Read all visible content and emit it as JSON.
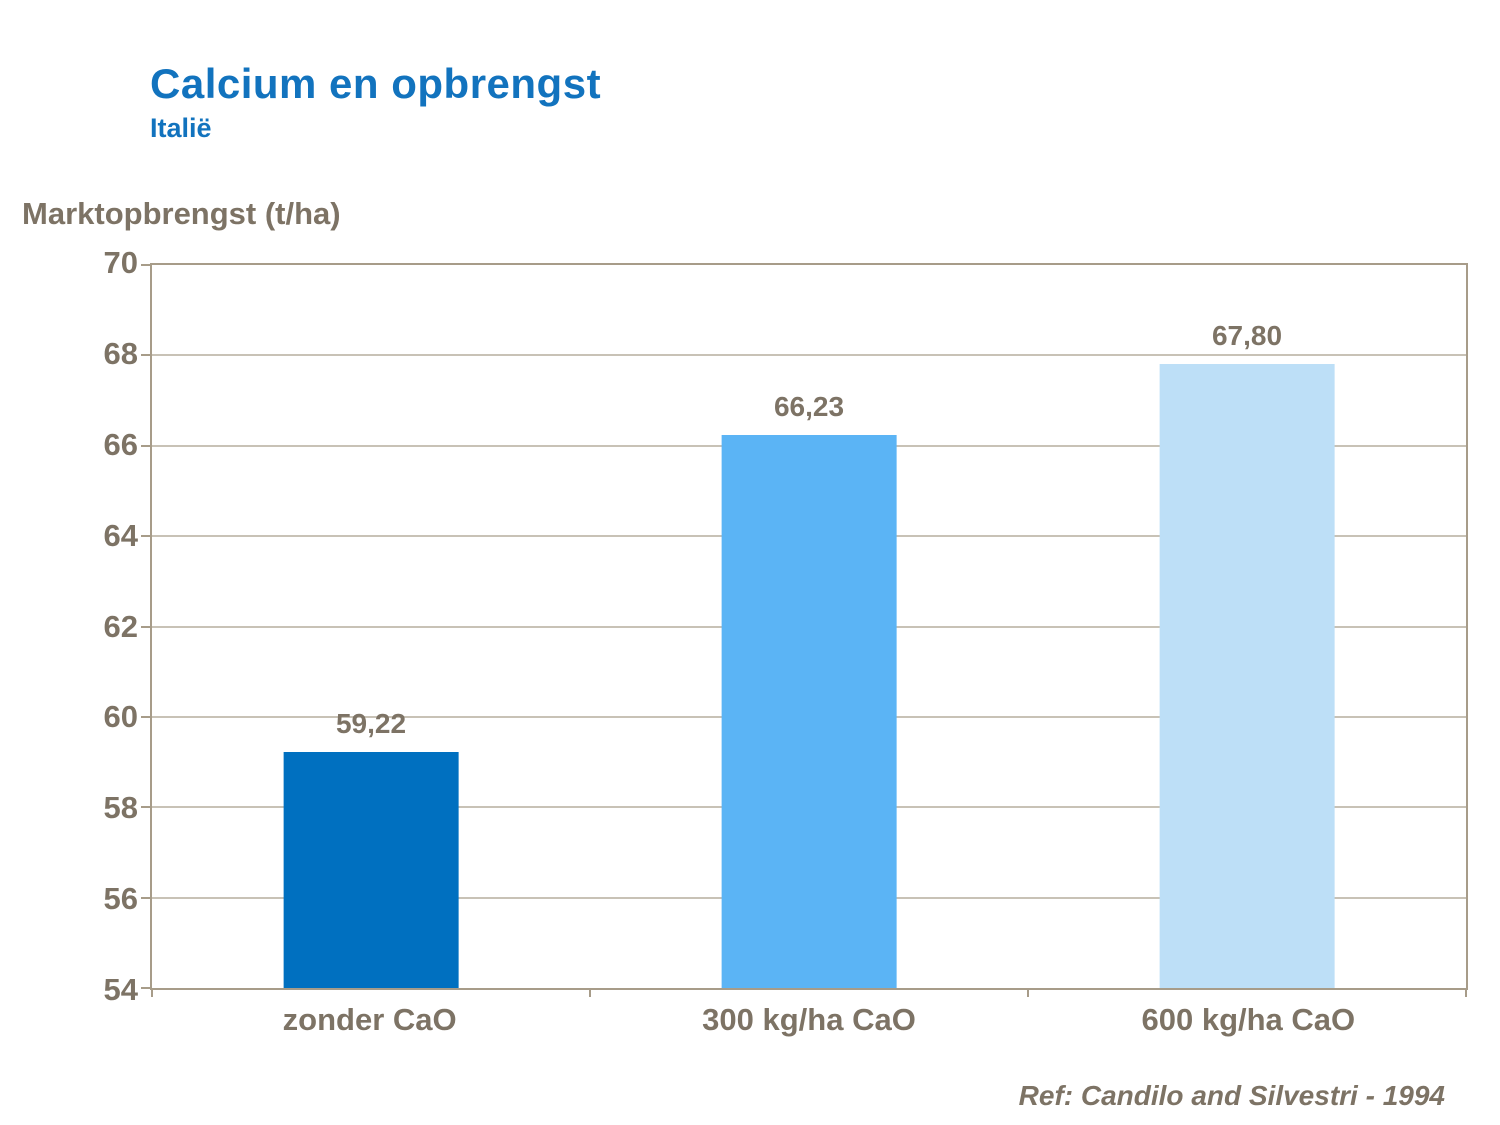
{
  "colors": {
    "title": "#1273BE",
    "text": "#7D7365",
    "frame": "#A79C89",
    "gridline": "#C8C2B6"
  },
  "chart_data": {
    "type": "bar",
    "title": "Calcium en opbrengst",
    "subtitle": "Italië",
    "ylabel": "Marktopbrengst (t/ha)",
    "xlabel": "",
    "categories": [
      "zonder CaO",
      "300 kg/ha CaO",
      "600 kg/ha CaO"
    ],
    "values": [
      59.22,
      66.23,
      67.8
    ],
    "value_labels": [
      "59,22",
      "66,23",
      "67,80"
    ],
    "bar_colors": [
      "#0070C0",
      "#5BB4F5",
      "#BDDFF7"
    ],
    "ylim": [
      54,
      70
    ],
    "yticks": [
      54,
      56,
      58,
      60,
      62,
      64,
      66,
      68,
      70
    ],
    "grid": true,
    "legend": "none"
  },
  "footer": {
    "reference": "Ref: Candilo and Silvestri - 1994"
  }
}
